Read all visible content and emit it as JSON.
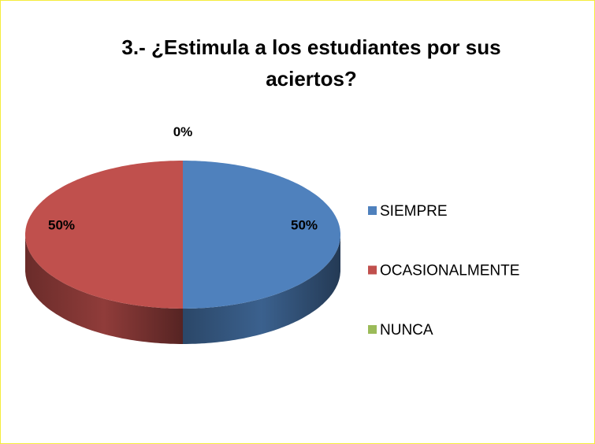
{
  "chart_data": {
    "type": "pie3d",
    "title": "3.- ¿Estimula a los estudiantes por sus aciertos?",
    "categories": [
      "SIEMPRE",
      "OCASIONALMENTE",
      "NUNCA"
    ],
    "values": [
      50,
      50,
      0
    ],
    "value_labels": [
      "50%",
      "50%",
      "0%"
    ],
    "colors": [
      "#4f81bd",
      "#c0504d",
      "#9bbb59"
    ],
    "legend": "right"
  }
}
